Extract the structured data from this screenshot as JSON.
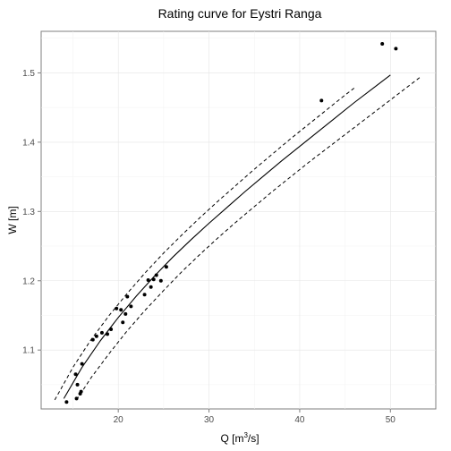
{
  "chart_data": {
    "type": "scatter",
    "title": "Rating curve for Eystri Ranga",
    "xlabel": "Q  [m³/s]",
    "xlabel_main": "Q  [m",
    "xlabel_sup": "3",
    "xlabel_tail": "/s]",
    "ylabel": "W [m]",
    "xlim": [
      11.5,
      55.0
    ],
    "ylim": [
      1.015,
      1.56
    ],
    "x_ticks": [
      20,
      30,
      40,
      50
    ],
    "y_ticks": [
      1.1,
      1.2,
      1.3,
      1.4,
      1.5
    ],
    "grid": true,
    "legend": "none",
    "points": [
      {
        "x": 14.3,
        "y": 1.025
      },
      {
        "x": 15.4,
        "y": 1.03
      },
      {
        "x": 15.8,
        "y": 1.037
      },
      {
        "x": 15.9,
        "y": 1.04
      },
      {
        "x": 15.5,
        "y": 1.05
      },
      {
        "x": 15.3,
        "y": 1.065
      },
      {
        "x": 16.0,
        "y": 1.08
      },
      {
        "x": 17.2,
        "y": 1.115
      },
      {
        "x": 17.6,
        "y": 1.12
      },
      {
        "x": 18.2,
        "y": 1.125
      },
      {
        "x": 18.8,
        "y": 1.123
      },
      {
        "x": 19.2,
        "y": 1.13
      },
      {
        "x": 19.8,
        "y": 1.16
      },
      {
        "x": 20.3,
        "y": 1.158
      },
      {
        "x": 20.5,
        "y": 1.14
      },
      {
        "x": 20.8,
        "y": 1.152
      },
      {
        "x": 21.0,
        "y": 1.177
      },
      {
        "x": 21.4,
        "y": 1.163
      },
      {
        "x": 22.9,
        "y": 1.18
      },
      {
        "x": 23.3,
        "y": 1.201
      },
      {
        "x": 23.6,
        "y": 1.191
      },
      {
        "x": 23.9,
        "y": 1.202
      },
      {
        "x": 24.2,
        "y": 1.208
      },
      {
        "x": 24.7,
        "y": 1.2
      },
      {
        "x": 25.3,
        "y": 1.22
      },
      {
        "x": 42.4,
        "y": 1.46
      },
      {
        "x": 49.1,
        "y": 1.542
      },
      {
        "x": 50.6,
        "y": 1.535
      }
    ],
    "fit_line": [
      {
        "x": 14.0,
        "y": 1.03
      },
      {
        "x": 16.0,
        "y": 1.075
      },
      {
        "x": 18.0,
        "y": 1.113
      },
      {
        "x": 20.0,
        "y": 1.147
      },
      {
        "x": 22.0,
        "y": 1.178
      },
      {
        "x": 24.0,
        "y": 1.207
      },
      {
        "x": 26.0,
        "y": 1.234
      },
      {
        "x": 28.0,
        "y": 1.259
      },
      {
        "x": 30.0,
        "y": 1.283
      },
      {
        "x": 32.0,
        "y": 1.306
      },
      {
        "x": 34.0,
        "y": 1.329
      },
      {
        "x": 36.0,
        "y": 1.351
      },
      {
        "x": 38.0,
        "y": 1.373
      },
      {
        "x": 40.0,
        "y": 1.394
      },
      {
        "x": 42.0,
        "y": 1.415
      },
      {
        "x": 44.0,
        "y": 1.436
      },
      {
        "x": 46.0,
        "y": 1.457
      },
      {
        "x": 48.0,
        "y": 1.477
      },
      {
        "x": 50.0,
        "y": 1.497
      }
    ],
    "upper_band": [
      {
        "x": 13.0,
        "y": 1.028
      },
      {
        "x": 15.0,
        "y": 1.075
      },
      {
        "x": 17.0,
        "y": 1.115
      },
      {
        "x": 19.0,
        "y": 1.15
      },
      {
        "x": 21.0,
        "y": 1.182
      },
      {
        "x": 23.0,
        "y": 1.212
      },
      {
        "x": 25.0,
        "y": 1.24
      },
      {
        "x": 27.0,
        "y": 1.266
      },
      {
        "x": 29.0,
        "y": 1.291
      },
      {
        "x": 31.0,
        "y": 1.315
      },
      {
        "x": 33.0,
        "y": 1.338
      },
      {
        "x": 35.0,
        "y": 1.361
      },
      {
        "x": 37.0,
        "y": 1.383
      },
      {
        "x": 39.0,
        "y": 1.405
      },
      {
        "x": 41.0,
        "y": 1.426
      },
      {
        "x": 43.0,
        "y": 1.447
      },
      {
        "x": 45.0,
        "y": 1.468
      },
      {
        "x": 46.0,
        "y": 1.478
      }
    ],
    "lower_band": [
      {
        "x": 15.4,
        "y": 1.028
      },
      {
        "x": 17.0,
        "y": 1.06
      },
      {
        "x": 19.0,
        "y": 1.095
      },
      {
        "x": 21.0,
        "y": 1.128
      },
      {
        "x": 23.0,
        "y": 1.158
      },
      {
        "x": 25.0,
        "y": 1.186
      },
      {
        "x": 27.0,
        "y": 1.213
      },
      {
        "x": 29.0,
        "y": 1.238
      },
      {
        "x": 31.0,
        "y": 1.262
      },
      {
        "x": 33.0,
        "y": 1.285
      },
      {
        "x": 35.0,
        "y": 1.307
      },
      {
        "x": 37.0,
        "y": 1.329
      },
      {
        "x": 39.0,
        "y": 1.35
      },
      {
        "x": 41.0,
        "y": 1.371
      },
      {
        "x": 43.0,
        "y": 1.391
      },
      {
        "x": 45.0,
        "y": 1.411
      },
      {
        "x": 47.0,
        "y": 1.431
      },
      {
        "x": 49.0,
        "y": 1.451
      },
      {
        "x": 51.0,
        "y": 1.471
      },
      {
        "x": 53.3,
        "y": 1.494
      }
    ]
  }
}
